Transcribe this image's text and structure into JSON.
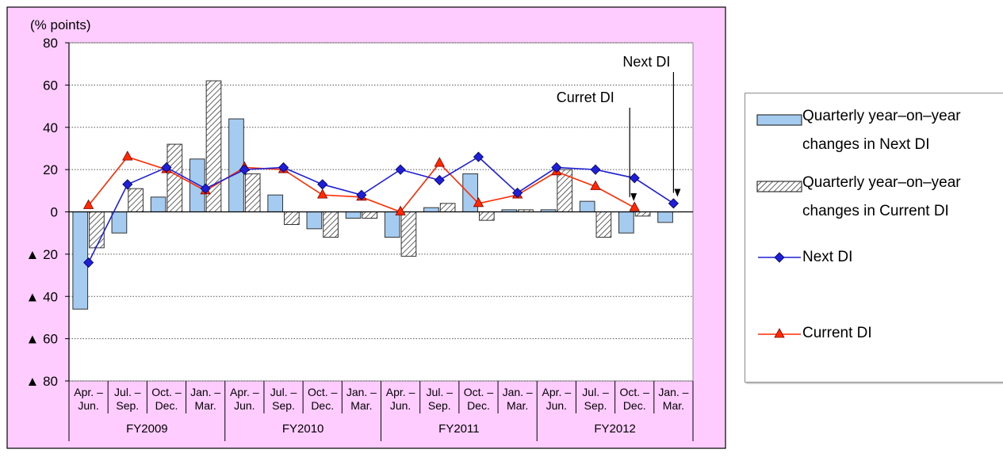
{
  "chart_data": {
    "type": "bar",
    "unit_label": "(% points)",
    "ylim": [
      -80,
      80
    ],
    "y_ticks": [
      {
        "value": 80,
        "label": "80"
      },
      {
        "value": 60,
        "label": "60"
      },
      {
        "value": 40,
        "label": "40"
      },
      {
        "value": 20,
        "label": "20"
      },
      {
        "value": 0,
        "label": "0"
      },
      {
        "value": -20,
        "label": "▲ 20"
      },
      {
        "value": -40,
        "label": "▲ 40"
      },
      {
        "value": -60,
        "label": "▲ 60"
      },
      {
        "value": -80,
        "label": "▲ 80"
      }
    ],
    "categories": [
      [
        "Apr. –",
        "Jun."
      ],
      [
        "Jul. –",
        "Sep."
      ],
      [
        "Oct. –",
        "Dec."
      ],
      [
        "Jan. –",
        "Mar."
      ],
      [
        "Apr. –",
        "Jun."
      ],
      [
        "Jul. –",
        "Sep."
      ],
      [
        "Oct. –",
        "Dec."
      ],
      [
        "Jan. –",
        "Mar."
      ],
      [
        "Apr. –",
        "Jun."
      ],
      [
        "Jul. –",
        "Sep."
      ],
      [
        "Oct. –",
        "Dec."
      ],
      [
        "Jan. –",
        "Mar."
      ],
      [
        "Apr. –",
        "Jun."
      ],
      [
        "Jul. –",
        "Sep."
      ],
      [
        "Oct. –",
        "Dec."
      ],
      [
        "Jan. –",
        "Mar."
      ]
    ],
    "groups": [
      "FY2009",
      "FY2010",
      "FY2011",
      "FY2012"
    ],
    "grid": true,
    "series": [
      {
        "name": "Quarterly year–on–year changes in Next DI",
        "type": "bar",
        "pattern": "solid-blue",
        "values": [
          -46,
          -10,
          7,
          25,
          44,
          8,
          -8,
          -3,
          -12,
          2,
          18,
          1,
          1,
          5,
          -10,
          -5
        ]
      },
      {
        "name": "Quarterly year–on–year changes in Current DI",
        "type": "bar",
        "pattern": "hatched",
        "values": [
          -17,
          11,
          32,
          62,
          18,
          -6,
          -12,
          -3,
          -21,
          4,
          -4,
          1,
          20,
          -12,
          -2,
          null
        ]
      },
      {
        "name": "Next DI",
        "type": "line",
        "marker": "diamond",
        "color": "#1f1fd6",
        "values": [
          -24,
          13,
          21,
          11,
          20,
          21,
          13,
          8,
          20,
          15,
          26,
          9,
          21,
          20,
          16,
          4
        ]
      },
      {
        "name": "Current DI",
        "type": "line",
        "marker": "triangle",
        "color": "#ff2a00",
        "values": [
          3,
          26,
          20,
          10,
          21,
          20,
          8,
          7,
          0,
          23,
          4,
          8,
          19,
          12,
          2,
          null
        ]
      }
    ],
    "annotations": [
      {
        "text": "Curret DI",
        "x_index": 14,
        "y_value": 4
      },
      {
        "text": "Next DI",
        "x_index": 15,
        "y_value": 6
      }
    ],
    "colors": {
      "plot_background": "#ffffff",
      "frame_background": "#ffccff",
      "bar_blue": "#a6cbf0",
      "bar_blue_stroke": "#333333"
    }
  },
  "legend": {
    "entries": [
      {
        "lines": [
          "Quarterly year–on–year",
          "changes in Next DI"
        ]
      },
      {
        "lines": [
          "Quarterly year–on–year",
          "changes in Current DI"
        ]
      },
      {
        "lines": [
          "Next DI"
        ]
      },
      {
        "lines": [
          "Current DI"
        ]
      }
    ]
  }
}
